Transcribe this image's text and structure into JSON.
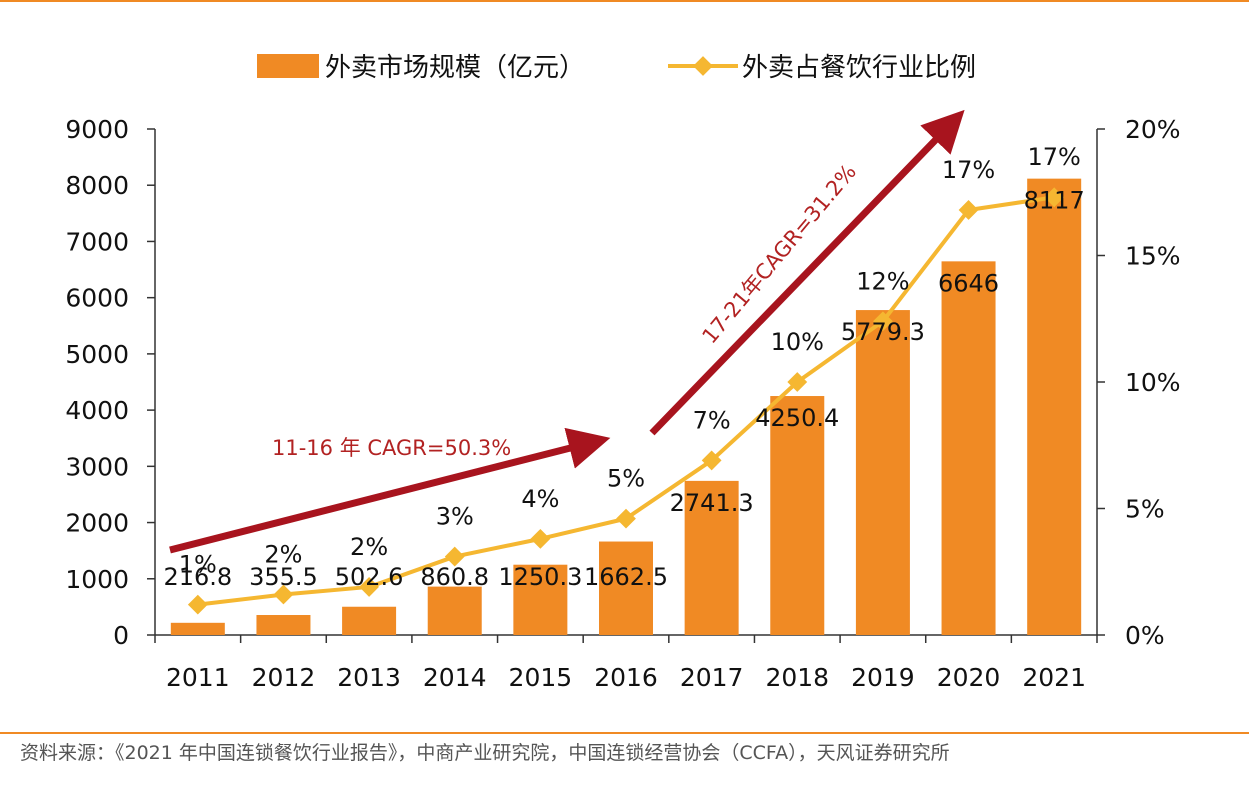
{
  "colors": {
    "bar": "#f08a24",
    "line": "#f5b731",
    "arrow": "#a8141e",
    "rule": "#f08a24",
    "annotation": "#b22222"
  },
  "chart_data": {
    "type": "bar",
    "categories": [
      "2011",
      "2012",
      "2013",
      "2014",
      "2015",
      "2016",
      "2017",
      "2018",
      "2019",
      "2020",
      "2021"
    ],
    "series": [
      {
        "name": "外卖市场规模（亿元）",
        "type": "bar",
        "axis": "left",
        "values": [
          216.8,
          355.5,
          502.6,
          860.8,
          1250.3,
          1662.5,
          2741.3,
          4250.4,
          5779.3,
          6646,
          8117
        ],
        "labels": [
          "216.8",
          "355.5",
          "502.6",
          "860.8",
          "1250.3",
          "1662.5",
          "2741.3",
          "4250.4",
          "5779.3",
          "6646",
          "8117"
        ]
      },
      {
        "name": "外卖占餐饮行业比例",
        "type": "line",
        "axis": "right",
        "values": [
          1.2,
          1.6,
          1.9,
          3.1,
          3.8,
          4.6,
          6.9,
          10.0,
          12.4,
          16.8,
          17.3
        ],
        "labels": [
          "1%",
          "2%",
          "2%",
          "3%",
          "4%",
          "5%",
          "7%",
          "10%",
          "12%",
          "17%",
          "17%"
        ]
      }
    ],
    "y_left": {
      "min": 0,
      "max": 9000,
      "ticks": [
        "0",
        "1000",
        "2000",
        "3000",
        "4000",
        "5000",
        "6000",
        "7000",
        "8000",
        "9000"
      ]
    },
    "y_right": {
      "min": 0,
      "max": 20,
      "ticks": [
        "0%",
        "5%",
        "10%",
        "15%",
        "20%"
      ]
    },
    "legend": [
      "外卖市场规模（亿元）",
      "外卖占餐饮行业比例"
    ],
    "annotations": [
      "11-16 年 CAGR=50.3%",
      "17-21年CAGR=31.2%"
    ]
  },
  "source_text": "资料来源：《2021 年中国连锁餐饮行业报告》，中商产业研究院，中国连锁经营协会（CCFA），天风证券研究所"
}
